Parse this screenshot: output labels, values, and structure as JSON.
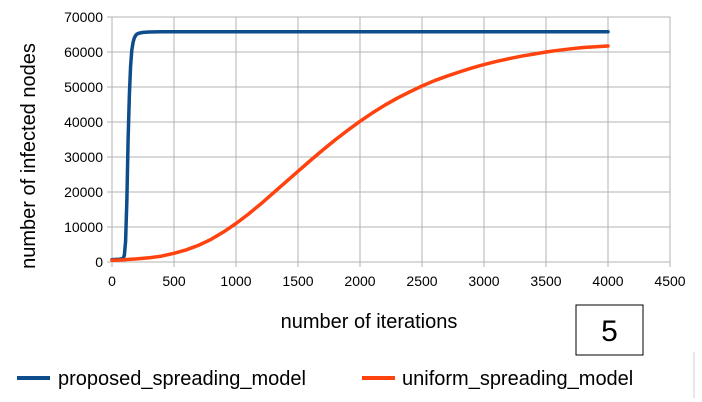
{
  "chart_data": {
    "type": "line",
    "title": "",
    "xlabel": "number of iterations",
    "ylabel": "number of infected nodes",
    "xlim": [
      0,
      4500
    ],
    "ylim": [
      0,
      70000
    ],
    "xticks": [
      0,
      500,
      1000,
      1500,
      2000,
      2500,
      3000,
      3500,
      4000,
      4500
    ],
    "yticks": [
      0,
      10000,
      20000,
      30000,
      40000,
      50000,
      60000,
      70000
    ],
    "grid": true,
    "legend_position": "bottom",
    "series": [
      {
        "name": "proposed_spreading_model",
        "color": "#0e4d8b",
        "x": [
          0,
          60,
          90,
          100,
          110,
          120,
          130,
          140,
          150,
          160,
          170,
          180,
          190,
          200,
          220,
          250,
          300,
          400,
          1000,
          2000,
          3000,
          4000
        ],
        "y": [
          700,
          800,
          1000,
          2000,
          6000,
          18000,
          35000,
          48000,
          56000,
          60500,
          62800,
          64000,
          64700,
          65100,
          65400,
          65600,
          65700,
          65800,
          65800,
          65800,
          65800,
          65800
        ]
      },
      {
        "name": "uniform_spreading_model",
        "color": "#ff420e",
        "x": [
          0,
          50,
          100,
          150,
          200,
          300,
          400,
          500,
          600,
          700,
          800,
          900,
          1000,
          1100,
          1200,
          1300,
          1400,
          1500,
          1600,
          1700,
          1800,
          1900,
          2000,
          2100,
          2200,
          2300,
          2400,
          2500,
          2600,
          2700,
          2800,
          2900,
          3000,
          3100,
          3200,
          3300,
          3400,
          3500,
          3600,
          3700,
          3800,
          3900,
          4000
        ],
        "y": [
          500,
          550,
          650,
          800,
          900,
          1200,
          1700,
          2500,
          3500,
          4800,
          6500,
          8600,
          11000,
          13700,
          16600,
          19700,
          22800,
          25900,
          29000,
          32000,
          34900,
          37600,
          40200,
          42600,
          44800,
          46800,
          48600,
          50300,
          51800,
          53100,
          54300,
          55400,
          56400,
          57300,
          58100,
          58800,
          59400,
          60000,
          60500,
          60900,
          61300,
          61500,
          61700
        ]
      }
    ]
  },
  "badge": {
    "text": "5"
  }
}
